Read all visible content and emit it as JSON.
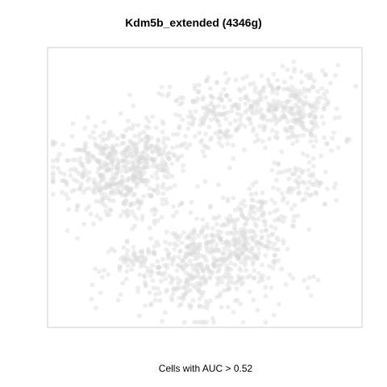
{
  "chart_data": {
    "type": "scatter",
    "title": "Kdm5b_extended (4346g)",
    "xlabel": "Cells with AUC > 0.52",
    "ylabel": "",
    "grid": false,
    "legend": "none",
    "point_color": "#d9d9d9",
    "point_opacity": 0.45,
    "xlim": [
      0,
      100
    ],
    "ylim": [
      0,
      100
    ],
    "clusters": [
      {
        "name": "",
        "center": [
          18,
          58
        ],
        "spread": [
          9,
          7
        ],
        "count": 260
      },
      {
        "name": "",
        "center": [
          30,
          60
        ],
        "spread": [
          7,
          6
        ],
        "count": 160
      },
      {
        "name": "",
        "center": [
          26,
          47
        ],
        "spread": [
          9,
          5
        ],
        "count": 120
      },
      {
        "name": "",
        "center": [
          52,
          75
        ],
        "spread": [
          10,
          8
        ],
        "count": 180
      },
      {
        "name": "",
        "center": [
          70,
          80
        ],
        "spread": [
          8,
          6
        ],
        "count": 150
      },
      {
        "name": "",
        "center": [
          83,
          76
        ],
        "spread": [
          6,
          9
        ],
        "count": 140
      },
      {
        "name": "",
        "center": [
          82,
          50
        ],
        "spread": [
          6,
          4
        ],
        "count": 60
      },
      {
        "name": "",
        "center": [
          68,
          40
        ],
        "spread": [
          6,
          5
        ],
        "count": 80
      },
      {
        "name": "",
        "center": [
          48,
          20
        ],
        "spread": [
          13,
          9
        ],
        "count": 420
      },
      {
        "name": "",
        "center": [
          58,
          30
        ],
        "spread": [
          7,
          6
        ],
        "count": 140
      },
      {
        "name": "",
        "center": [
          27,
          25
        ],
        "spread": [
          4,
          3
        ],
        "count": 40
      }
    ]
  }
}
